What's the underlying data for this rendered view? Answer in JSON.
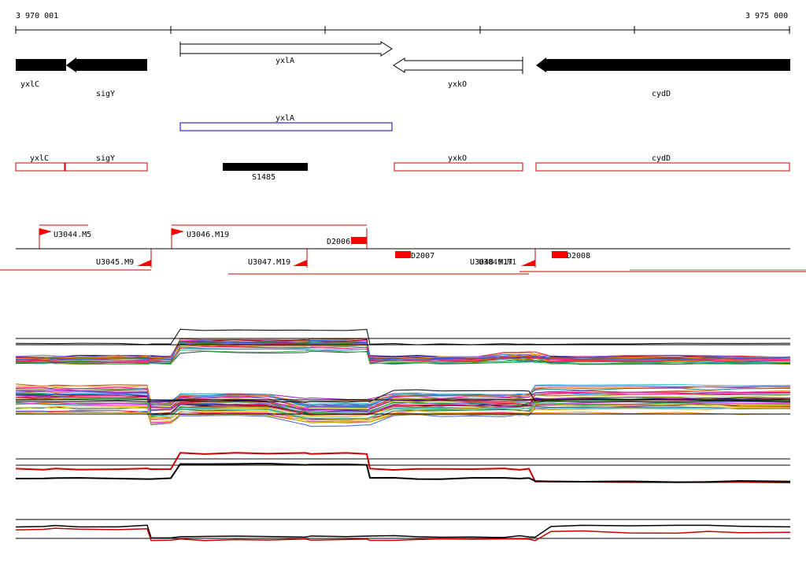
{
  "ruler": {
    "start_label": "3 970 001",
    "end_label": "3 975 000"
  },
  "genes": [
    {
      "name": "yxlC",
      "strand": "-",
      "filled": true
    },
    {
      "name": "sigY",
      "strand": "-",
      "filled": true
    },
    {
      "name": "yxlA",
      "strand": "+",
      "filled": false
    },
    {
      "name": "yxkO",
      "strand": "-",
      "filled": false
    },
    {
      "name": "cydD",
      "strand": "-",
      "filled": true
    }
  ],
  "blue_track": {
    "label": "yxlA"
  },
  "red_track": [
    {
      "label": "yxlC"
    },
    {
      "label": "sigY"
    },
    {
      "label": "yxkO"
    },
    {
      "label": "cydD"
    }
  ],
  "feature": {
    "label": "S1485"
  },
  "upper_labels": [
    "U3044.M5",
    "U3046.M19"
  ],
  "lower_labels": [
    "U3045.M9",
    "U3047.M19",
    "U3048.M17",
    "U3049.M1"
  ],
  "d_labels": [
    "D2006",
    "D2007",
    "D2008"
  ],
  "colors": {
    "gene_fill": "#000000",
    "blue": "#0000cc",
    "red": "#cc0000",
    "bright_red": "#ff0000",
    "axis": "#000000"
  }
}
